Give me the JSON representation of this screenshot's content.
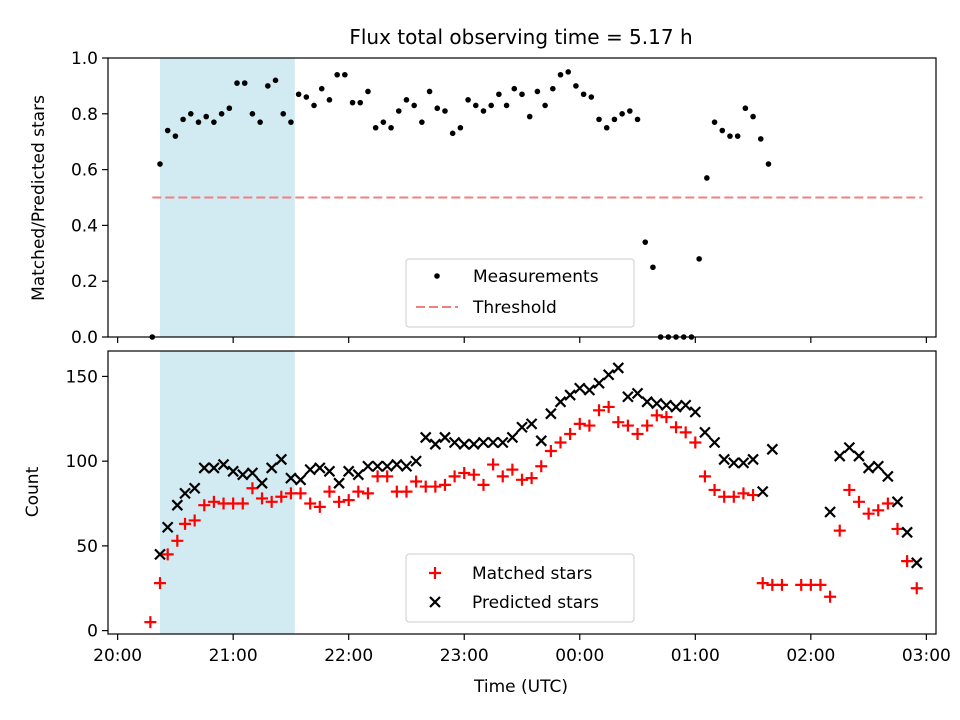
{
  "chart_data": [
    {
      "type": "scatter",
      "title": "Flux total observing time = 5.17 h",
      "ylabel": "Matched/Predicted stars",
      "xlabel": "",
      "ylim": [
        0,
        1
      ],
      "yticks": [
        "0.0",
        "0.2",
        "0.4",
        "0.6",
        "0.8",
        "1.0"
      ],
      "shaded_interval": [
        "20:22",
        "21:32"
      ],
      "threshold": {
        "name": "Threshold",
        "value": 0.5,
        "x_start": "20:18",
        "x_end": "02:58",
        "color": "#f08080"
      },
      "legend": {
        "position": "lower center",
        "entries": [
          "Measurements",
          "Threshold"
        ]
      },
      "series": [
        {
          "name": "Measurements",
          "color": "#000000",
          "marker": "dot",
          "points": [
            [
              "20:18",
              0.0
            ],
            [
              "20:22",
              0.62
            ],
            [
              "20:26",
              0.74
            ],
            [
              "20:30",
              0.72
            ],
            [
              "20:34",
              0.78
            ],
            [
              "20:38",
              0.8
            ],
            [
              "20:42",
              0.77
            ],
            [
              "20:46",
              0.79
            ],
            [
              "20:50",
              0.77
            ],
            [
              "20:54",
              0.8
            ],
            [
              "20:58",
              0.82
            ],
            [
              "21:02",
              0.91
            ],
            [
              "21:06",
              0.91
            ],
            [
              "21:10",
              0.8
            ],
            [
              "21:14",
              0.77
            ],
            [
              "21:18",
              0.9
            ],
            [
              "21:22",
              0.92
            ],
            [
              "21:26",
              0.8
            ],
            [
              "21:30",
              0.77
            ],
            [
              "21:34",
              0.87
            ],
            [
              "21:38",
              0.86
            ],
            [
              "21:42",
              0.83
            ],
            [
              "21:46",
              0.89
            ],
            [
              "21:50",
              0.85
            ],
            [
              "21:54",
              0.94
            ],
            [
              "21:58",
              0.94
            ],
            [
              "22:02",
              0.84
            ],
            [
              "22:06",
              0.84
            ],
            [
              "22:10",
              0.88
            ],
            [
              "22:14",
              0.75
            ],
            [
              "22:18",
              0.77
            ],
            [
              "22:22",
              0.75
            ],
            [
              "22:26",
              0.81
            ],
            [
              "22:30",
              0.85
            ],
            [
              "22:34",
              0.83
            ],
            [
              "22:38",
              0.77
            ],
            [
              "22:42",
              0.88
            ],
            [
              "22:46",
              0.82
            ],
            [
              "22:50",
              0.81
            ],
            [
              "22:54",
              0.73
            ],
            [
              "22:58",
              0.75
            ],
            [
              "23:02",
              0.85
            ],
            [
              "23:06",
              0.83
            ],
            [
              "23:10",
              0.81
            ],
            [
              "23:14",
              0.83
            ],
            [
              "23:18",
              0.87
            ],
            [
              "23:22",
              0.83
            ],
            [
              "23:26",
              0.89
            ],
            [
              "23:30",
              0.87
            ],
            [
              "23:34",
              0.79
            ],
            [
              "23:38",
              0.88
            ],
            [
              "23:42",
              0.83
            ],
            [
              "23:46",
              0.89
            ],
            [
              "23:50",
              0.94
            ],
            [
              "23:54",
              0.95
            ],
            [
              "23:58",
              0.9
            ],
            [
              "00:02",
              0.87
            ],
            [
              "00:06",
              0.86
            ],
            [
              "00:10",
              0.78
            ],
            [
              "00:14",
              0.75
            ],
            [
              "00:18",
              0.78
            ],
            [
              "00:22",
              0.8
            ],
            [
              "00:26",
              0.81
            ],
            [
              "00:30",
              0.78
            ],
            [
              "00:34",
              0.34
            ],
            [
              "00:38",
              0.25
            ],
            [
              "00:42",
              0.0
            ],
            [
              "00:46",
              0.0
            ],
            [
              "00:50",
              0.0
            ],
            [
              "00:54",
              0.0
            ],
            [
              "00:58",
              0.0
            ],
            [
              "01:02",
              0.28
            ],
            [
              "01:06",
              0.57
            ],
            [
              "01:10",
              0.77
            ],
            [
              "01:14",
              0.74
            ],
            [
              "01:18",
              0.72
            ],
            [
              "01:22",
              0.72
            ],
            [
              "01:26",
              0.82
            ],
            [
              "01:30",
              0.79
            ],
            [
              "01:34",
              0.71
            ],
            [
              "01:38",
              0.62
            ]
          ]
        }
      ]
    },
    {
      "type": "scatter",
      "title": "",
      "xlabel": "Time (UTC)",
      "ylabel": "Count",
      "ylim": [
        -2,
        165
      ],
      "yticks": [
        "0",
        "50",
        "100",
        "150"
      ],
      "xticks": [
        "20:00",
        "21:00",
        "22:00",
        "23:00",
        "00:00",
        "01:00",
        "02:00",
        "03:00"
      ],
      "shaded_interval": [
        "20:22",
        "21:32"
      ],
      "legend": {
        "position": "lower center",
        "entries": [
          "Matched stars",
          "Predicted stars"
        ]
      },
      "series": [
        {
          "name": "Matched stars",
          "color": "#ff0000",
          "marker": "plus",
          "points": [
            [
              "20:17",
              5
            ],
            [
              "20:22",
              28
            ],
            [
              "20:26",
              45
            ],
            [
              "20:31",
              53
            ],
            [
              "20:35",
              63
            ],
            [
              "20:40",
              65
            ],
            [
              "20:45",
              74
            ],
            [
              "20:50",
              76
            ],
            [
              "20:55",
              75
            ],
            [
              "21:00",
              75
            ],
            [
              "21:05",
              75
            ],
            [
              "21:10",
              84
            ],
            [
              "21:15",
              78
            ],
            [
              "21:20",
              76
            ],
            [
              "21:25",
              79
            ],
            [
              "21:30",
              81
            ],
            [
              "21:35",
              81
            ],
            [
              "21:40",
              75
            ],
            [
              "21:45",
              73
            ],
            [
              "21:50",
              82
            ],
            [
              "21:55",
              76
            ],
            [
              "22:00",
              77
            ],
            [
              "22:05",
              82
            ],
            [
              "22:10",
              81
            ],
            [
              "22:15",
              91
            ],
            [
              "22:20",
              91
            ],
            [
              "22:25",
              82
            ],
            [
              "22:30",
              82
            ],
            [
              "22:35",
              88
            ],
            [
              "22:40",
              85
            ],
            [
              "22:45",
              85
            ],
            [
              "22:50",
              86
            ],
            [
              "22:55",
              91
            ],
            [
              "23:00",
              93
            ],
            [
              "23:05",
              92
            ],
            [
              "23:10",
              86
            ],
            [
              "23:15",
              98
            ],
            [
              "23:20",
              91
            ],
            [
              "23:25",
              95
            ],
            [
              "23:30",
              89
            ],
            [
              "23:35",
              90
            ],
            [
              "23:40",
              97
            ],
            [
              "23:45",
              106
            ],
            [
              "23:50",
              111
            ],
            [
              "23:55",
              116
            ],
            [
              "00:00",
              122
            ],
            [
              "00:05",
              121
            ],
            [
              "00:10",
              130
            ],
            [
              "00:15",
              132
            ],
            [
              "00:20",
              123
            ],
            [
              "00:25",
              121
            ],
            [
              "00:30",
              116
            ],
            [
              "00:35",
              121
            ],
            [
              "00:40",
              127
            ],
            [
              "00:45",
              126
            ],
            [
              "00:50",
              120
            ],
            [
              "00:55",
              117
            ],
            [
              "01:00",
              111
            ],
            [
              "01:05",
              91
            ],
            [
              "01:10",
              83
            ],
            [
              "01:15",
              79
            ],
            [
              "01:20",
              79
            ],
            [
              "01:25",
              81
            ],
            [
              "01:30",
              80
            ],
            [
              "01:35",
              28
            ],
            [
              "01:40",
              27
            ],
            [
              "01:45",
              27
            ],
            [
              "01:55",
              27
            ],
            [
              "02:00",
              27
            ],
            [
              "02:05",
              27
            ],
            [
              "02:10",
              20
            ],
            [
              "02:15",
              59
            ],
            [
              "02:20",
              83
            ],
            [
              "02:25",
              76
            ],
            [
              "02:30",
              69
            ],
            [
              "02:35",
              71
            ],
            [
              "02:40",
              75
            ],
            [
              "02:45",
              60
            ],
            [
              "02:50",
              41
            ],
            [
              "02:55",
              25
            ]
          ]
        },
        {
          "name": "Predicted stars",
          "color": "#000000",
          "marker": "x",
          "points": [
            [
              "20:22",
              45
            ],
            [
              "20:26",
              61
            ],
            [
              "20:31",
              74
            ],
            [
              "20:35",
              81
            ],
            [
              "20:40",
              84
            ],
            [
              "20:45",
              96
            ],
            [
              "20:50",
              96
            ],
            [
              "20:55",
              98
            ],
            [
              "21:00",
              94
            ],
            [
              "21:05",
              92
            ],
            [
              "21:10",
              93
            ],
            [
              "21:15",
              87
            ],
            [
              "21:20",
              96
            ],
            [
              "21:25",
              101
            ],
            [
              "21:30",
              90
            ],
            [
              "21:35",
              89
            ],
            [
              "21:40",
              95
            ],
            [
              "21:45",
              96
            ],
            [
              "21:50",
              94
            ],
            [
              "21:55",
              87
            ],
            [
              "22:00",
              94
            ],
            [
              "22:05",
              92
            ],
            [
              "22:10",
              97
            ],
            [
              "22:15",
              97
            ],
            [
              "22:20",
              97
            ],
            [
              "22:25",
              98
            ],
            [
              "22:30",
              97
            ],
            [
              "22:35",
              100
            ],
            [
              "22:40",
              114
            ],
            [
              "22:45",
              110
            ],
            [
              "22:50",
              114
            ],
            [
              "22:55",
              111
            ],
            [
              "23:00",
              110
            ],
            [
              "23:05",
              110
            ],
            [
              "23:10",
              111
            ],
            [
              "23:15",
              111
            ],
            [
              "23:20",
              111
            ],
            [
              "23:25",
              114
            ],
            [
              "23:30",
              120
            ],
            [
              "23:35",
              122
            ],
            [
              "23:40",
              112
            ],
            [
              "23:45",
              128
            ],
            [
              "23:50",
              135
            ],
            [
              "23:55",
              139
            ],
            [
              "00:00",
              143
            ],
            [
              "00:05",
              142
            ],
            [
              "00:10",
              146
            ],
            [
              "00:15",
              151
            ],
            [
              "00:20",
              155
            ],
            [
              "00:25",
              138
            ],
            [
              "00:30",
              140
            ],
            [
              "00:35",
              135
            ],
            [
              "00:40",
              134
            ],
            [
              "00:45",
              133
            ],
            [
              "00:50",
              132
            ],
            [
              "00:55",
              133
            ],
            [
              "01:00",
              129
            ],
            [
              "01:05",
              117
            ],
            [
              "01:10",
              111
            ],
            [
              "01:15",
              101
            ],
            [
              "01:20",
              99
            ],
            [
              "01:25",
              99
            ],
            [
              "01:30",
              101
            ],
            [
              "01:35",
              82
            ],
            [
              "01:40",
              107
            ],
            [
              "02:10",
              70
            ],
            [
              "02:15",
              103
            ],
            [
              "02:20",
              108
            ],
            [
              "02:25",
              103
            ],
            [
              "02:30",
              96
            ],
            [
              "02:35",
              97
            ],
            [
              "02:40",
              91
            ],
            [
              "02:45",
              76
            ],
            [
              "02:50",
              58
            ],
            [
              "02:55",
              40
            ]
          ]
        }
      ]
    }
  ]
}
